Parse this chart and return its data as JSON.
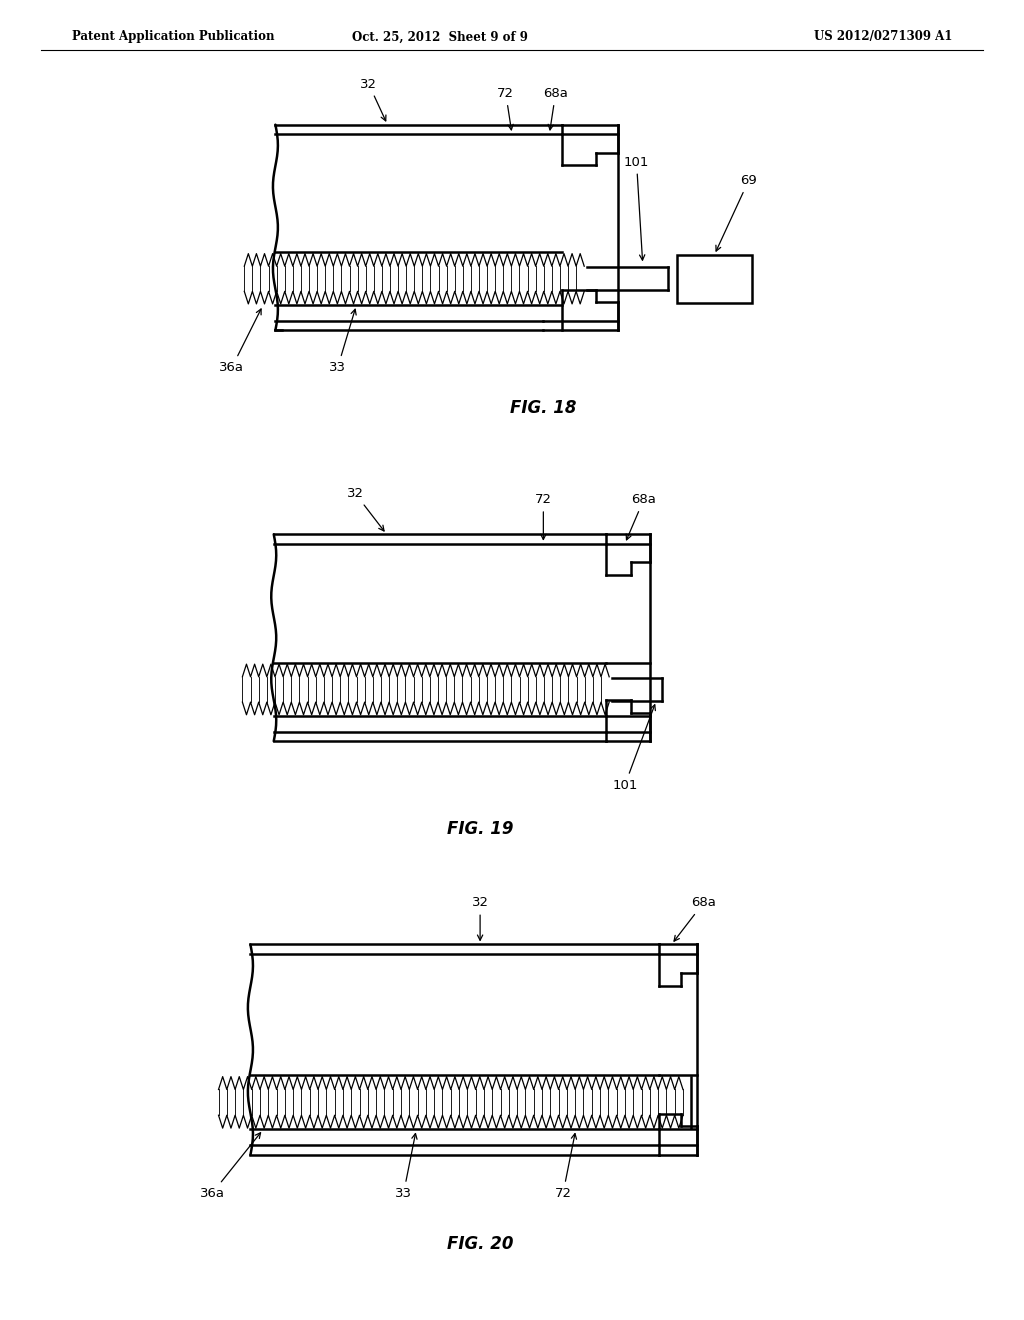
{
  "bg_color": "#ffffff",
  "line_color": "#000000",
  "header_left": "Patent Application Publication",
  "header_center": "Oct. 25, 2012  Sheet 9 of 9",
  "header_right": "US 2012/0271309 A1",
  "fig18_label": "FIG. 18",
  "fig19_label": "FIG. 19",
  "fig20_label": "FIG. 20"
}
